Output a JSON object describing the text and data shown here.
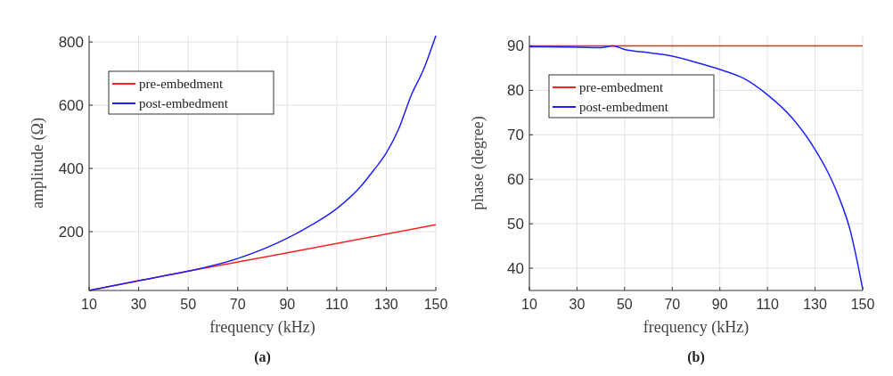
{
  "chart_data": [
    {
      "type": "line",
      "xlabel": "frequency (kHz)",
      "ylabel": "amplitude (Ω)",
      "annotations": [
        "(a)"
      ],
      "xlim": [
        10,
        150
      ],
      "xticks": [
        10,
        30,
        50,
        70,
        90,
        110,
        130,
        150
      ],
      "ylim": [
        14,
        820
      ],
      "yticks": [
        200,
        400,
        600,
        800
      ],
      "grid": true,
      "legend": "top left",
      "series": [
        {
          "name": "pre-embedment",
          "color": "#ff2020",
          "x": [
            10,
            50,
            90,
            150
          ],
          "values": [
            14,
            75,
            133,
            222
          ]
        },
        {
          "name": "post-embedment",
          "color": "#2020ff",
          "x": [
            10,
            30,
            50,
            70,
            90,
            100,
            110,
            120,
            125,
            130,
            135,
            140,
            145,
            150
          ],
          "values": [
            14,
            45,
            75,
            115,
            179,
            222,
            273,
            346,
            395,
            449,
            525,
            630,
            712,
            820
          ]
        }
      ]
    },
    {
      "type": "line",
      "xlabel": "frequency (kHz)",
      "ylabel": "phase (degree)",
      "annotations": [
        "(b)"
      ],
      "xlim": [
        10,
        150
      ],
      "xticks": [
        10,
        30,
        50,
        70,
        90,
        110,
        130,
        150
      ],
      "ylim": [
        35,
        92.3
      ],
      "yticks": [
        40,
        50,
        60,
        70,
        80,
        90
      ],
      "grid": true,
      "legend": "top left",
      "series": [
        {
          "name": "pre-embedment",
          "color": "#ff2020",
          "x": [
            10,
            150
          ],
          "values": [
            90,
            90
          ]
        },
        {
          "name": "post-embedment",
          "color": "#2020ff",
          "x": [
            10,
            30,
            40,
            45,
            50,
            60,
            70,
            80,
            90,
            100,
            110,
            120,
            130,
            135,
            140,
            145,
            147,
            150
          ],
          "values": [
            89.8,
            89.7,
            89.6,
            90,
            89.2,
            88.5,
            87.7,
            86.3,
            84.7,
            82.7,
            79,
            74,
            66.7,
            62,
            56,
            48,
            43.3,
            35.3
          ]
        }
      ]
    }
  ]
}
